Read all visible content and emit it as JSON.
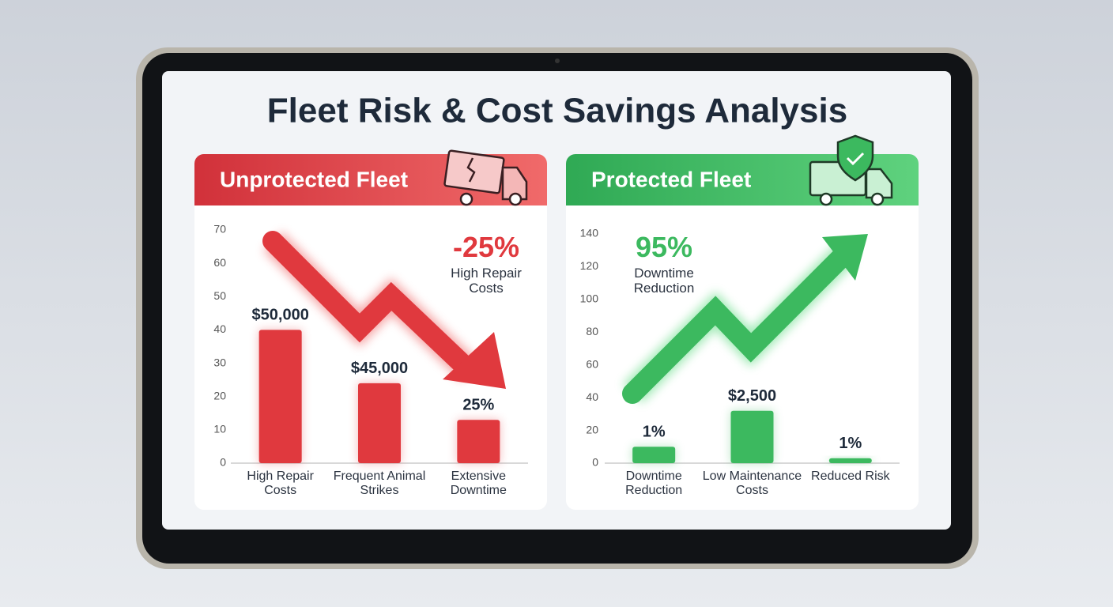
{
  "title": "Fleet Risk & Cost Savings Analysis",
  "chart_data": [
    {
      "type": "bar",
      "title": "Unprotected Fleet",
      "categories": [
        "High Repair Costs",
        "Frequent Animal Strikes",
        "Extensive Downtime"
      ],
      "values": [
        40,
        24,
        13
      ],
      "annotations": [
        "$50,000",
        "$45,000",
        "25%"
      ],
      "color": "#e0393e",
      "ylim": [
        0,
        70
      ],
      "yticks": [
        0,
        10,
        20,
        30,
        40,
        50,
        60,
        70
      ],
      "grid": false,
      "callout": {
        "value": "-25%",
        "label": "High Repair Costs"
      }
    },
    {
      "type": "bar",
      "title": "Protected Fleet",
      "categories": [
        "Downtime Reduction",
        "Low Maintenance Costs",
        "Reduced Risk"
      ],
      "values": [
        10,
        32,
        3
      ],
      "annotations": [
        "1%",
        "$2,500",
        "1%"
      ],
      "color": "#3cb95f",
      "ylim": [
        0,
        140
      ],
      "yticks": [
        0,
        20,
        40,
        60,
        80,
        100,
        120,
        140
      ],
      "grid": false,
      "callout": {
        "value": "95%",
        "label": "Downtime Reduction"
      }
    }
  ]
}
